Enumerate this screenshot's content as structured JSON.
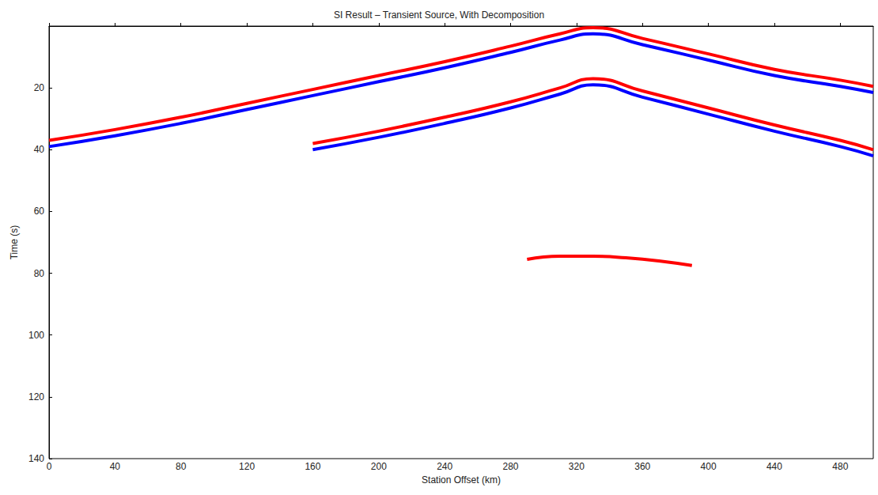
{
  "chart_data": {
    "type": "line",
    "title": "SI Result – Transient Source, With Decomposition",
    "x_label": "Station Offset (km)",
    "y_label": "Time (s)",
    "xlim": [
      0,
      500
    ],
    "xticks": [
      0,
      40,
      80,
      120,
      160,
      200,
      240,
      280,
      320,
      360,
      400,
      440,
      480
    ],
    "ylim": [
      0,
      140
    ],
    "yticks": [
      20,
      40,
      60,
      80,
      100,
      120,
      140
    ],
    "grid": false,
    "series": [
      {
        "color": "#ff0000",
        "line_style": "solid",
        "x": [
          0,
          40,
          80,
          120,
          160,
          200,
          240,
          280,
          310,
          330,
          360,
          400,
          440,
          480,
          500
        ],
        "values": [
          37,
          33.5,
          29.5,
          25,
          20.5,
          16,
          11.5,
          6.5,
          2.5,
          0.5,
          4,
          9,
          14,
          17.5,
          19.5
        ]
      },
      {
        "color": "#0000ff",
        "line_style": "solid",
        "x": [
          0,
          40,
          80,
          120,
          160,
          200,
          240,
          280,
          310,
          330,
          360,
          400,
          440,
          480,
          500
        ],
        "values": [
          39,
          35.5,
          31.5,
          27,
          22.5,
          18,
          13.5,
          8.5,
          4.5,
          2.5,
          6,
          11,
          16,
          19.5,
          21.5
        ]
      },
      {
        "color": "#ff0000",
        "line_style": "solid",
        "x": [
          160,
          200,
          240,
          280,
          310,
          330,
          360,
          400,
          440,
          480,
          500
        ],
        "values": [
          38,
          34,
          29.5,
          24.5,
          20,
          17,
          21,
          26.5,
          32,
          37,
          40
        ]
      },
      {
        "color": "#0000ff",
        "line_style": "solid",
        "x": [
          160,
          200,
          240,
          280,
          310,
          330,
          360,
          400,
          440,
          480,
          500
        ],
        "values": [
          40,
          36,
          31.5,
          26.5,
          22,
          19,
          23,
          28.5,
          34,
          39,
          42
        ]
      },
      {
        "color": "#ff0000",
        "line_style": "solid",
        "x": [
          290,
          310,
          330,
          350,
          370,
          390
        ],
        "values": [
          75.5,
          74.5,
          74.5,
          75,
          76,
          77.5
        ]
      }
    ]
  }
}
